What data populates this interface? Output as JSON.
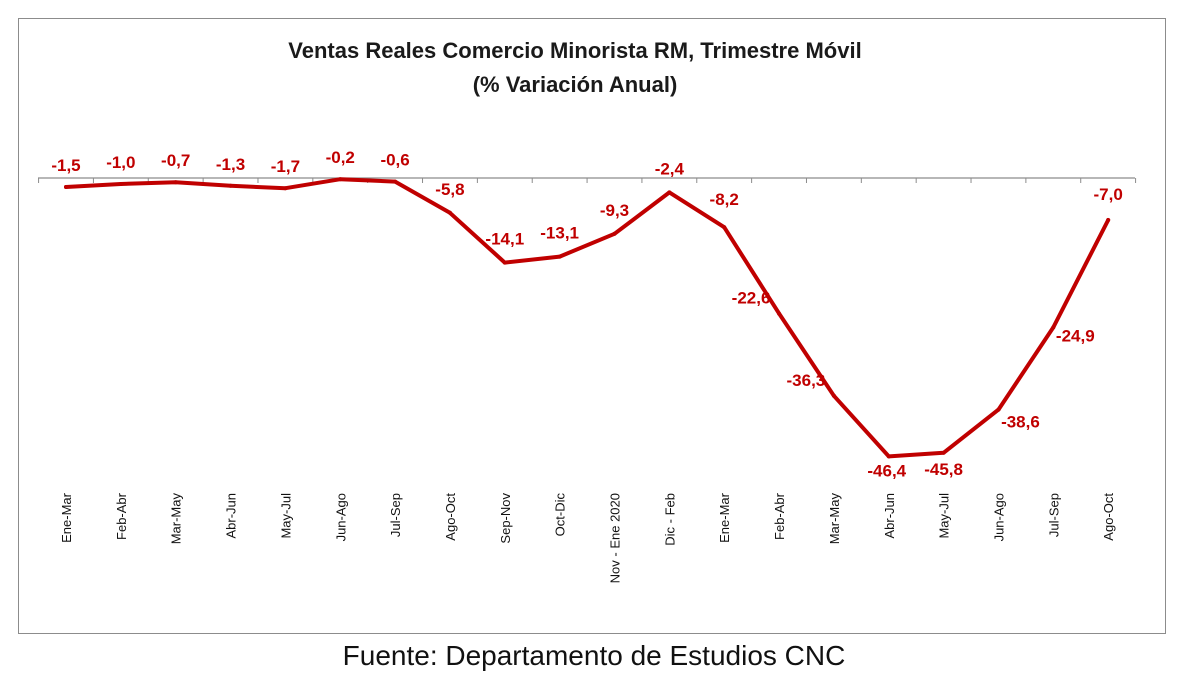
{
  "chart_data": {
    "type": "line",
    "title": "Ventas Reales Comercio Minorista RM, Trimestre Móvil",
    "subtitle": "(% Variación Anual)",
    "categories": [
      "Ene-Mar",
      "Feb-Abr",
      "Mar-May",
      "Abr-Jun",
      "May-Jul",
      "Jun-Ago",
      "Jul-Sep",
      "Ago-Oct",
      "Sep-Nov",
      "Oct-Dic",
      "Nov - Ene 2020",
      "Dic - Feb",
      "Ene-Mar",
      "Feb-Abr",
      "Mar-May",
      "Abr-Jun",
      "May-Jul",
      "Jun-Ago",
      "Jul-Sep",
      "Ago-Oct"
    ],
    "series": [
      {
        "values": [
          -1.5,
          -1.0,
          -0.7,
          -1.3,
          -1.7,
          -0.2,
          -0.6,
          -5.8,
          -14.1,
          -13.1,
          -9.3,
          -2.4,
          -8.2,
          -22.6,
          -36.3,
          -46.4,
          -45.8,
          -38.6,
          -24.9,
          -7.0
        ],
        "labels": [
          "-1,5",
          "-1,0",
          "-0,7",
          "-1,3",
          "-1,7",
          "-0,2",
          "-0,6",
          "-5,8",
          "-14,1",
          "-13,1",
          "-9,3",
          "-2,4",
          "-8,2",
          "-22,6",
          "-36,3",
          "-46,4",
          "-45,8",
          "-38,6",
          "-24,9",
          "-7,0"
        ],
        "color": "#c00000"
      }
    ],
    "ylim": [
      -50,
      0
    ],
    "grid": false,
    "legend": "none"
  },
  "source": "Fuente: Departamento de Estudios CNC"
}
